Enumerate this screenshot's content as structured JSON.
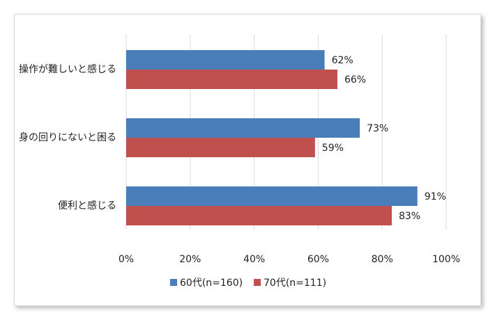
{
  "chart_data": {
    "type": "bar",
    "orientation": "horizontal",
    "categories": [
      "操作が難しいと感じる",
      "身の回りにないと困る",
      "便利と感じる"
    ],
    "series": [
      {
        "name": "60代(n=160)",
        "values": [
          62,
          73,
          91
        ],
        "labels": [
          "62%",
          "73%",
          "91%"
        ],
        "color": "#4a7ebb"
      },
      {
        "name": "70代(n=111)",
        "values": [
          66,
          59,
          83
        ],
        "labels": [
          "66%",
          "59%",
          "83%"
        ],
        "color": "#c0504d"
      }
    ],
    "xlim": [
      0,
      100
    ],
    "ticks": [
      0,
      20,
      40,
      60,
      80,
      100
    ],
    "tick_labels": [
      "0%",
      "20%",
      "40%",
      "60%",
      "80%",
      "100%"
    ],
    "grid": true,
    "legend_position": "bottom",
    "grid_color": "#d9d9d9"
  }
}
